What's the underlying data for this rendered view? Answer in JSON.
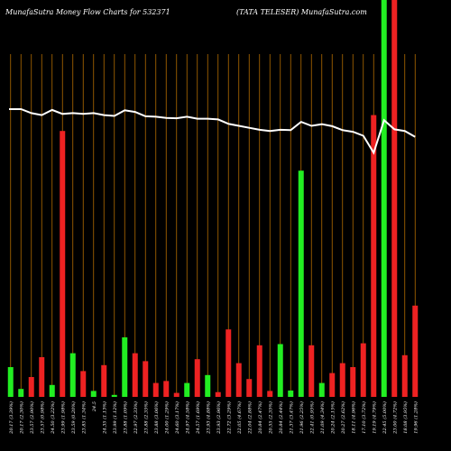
{
  "header": {
    "left": "MunafaSutra  Money Flow  Charts for 532371",
    "right": "(TATA TELESER) MunafaSutra.com"
  },
  "chart_data": {
    "type": "bar",
    "title": "MunafaSutra  Money Flow  Charts for 532371",
    "subtitle": "(TATA TELESER) MunafaSutra.com",
    "colors": {
      "up": "#22ee22",
      "down": "#ee2222",
      "price_line": "#ffffff",
      "grid": "#b36b00",
      "background": "#000000"
    },
    "ylim": [
      0,
      100
    ],
    "categories": [
      "20.17 (3.39%)",
      "20.17 (2.30%)",
      "23.57 (2.90%)",
      "23.57 (0.98%)",
      "24.50 (3.22%)",
      "23.99 (1.98%)",
      "23.59 (0.20%)",
      "23.85 (1.34%)",
      "24.5",
      "24.35 (1.13%)",
      "23.99 (1.12%)",
      "23.88 (1.09%)",
      "22.97 (2.33%)",
      "23.88 (2.35%)",
      "23.88 (3.06%)",
      "24.00 (1.29%)",
      "24.60 (3.17%)",
      "24.97 (4.58%)",
      "24.57 (1.69%)",
      "23.93 (4.88%)",
      "23.93 (2.96%)",
      "22.72 (3.29%)",
      "22.05 (4.67%)",
      "22.04 (2.88%)",
      "20.84 (2.47%)",
      "20.55 (2.35%)",
      "20.84 (2.44%)",
      "21.37 (3.47%)",
      "21.96 (2.25%)",
      "22.41 (0.95%)",
      "21.09 (4.34%)",
      "20.24 (2.15%)",
      "20.27 (2.62%)",
      "18.11 (4.96%)",
      "17.10 (3.72%)",
      "19.19 (4.79%)",
      "22.45 (5.00%)",
      "23.00 (4.72%)",
      "18.08 (3.95%)",
      "19.96 (1.28%)"
    ],
    "series": [
      {
        "type": "bar",
        "values": [
          7.5,
          2,
          5,
          10,
          3,
          67,
          11,
          6.5,
          1.5,
          8,
          0.5,
          15,
          11,
          9,
          3.5,
          4,
          1,
          3.5,
          9.5,
          5.5,
          1.2,
          17,
          8.5,
          4.5,
          13,
          1.5,
          13.3,
          1.6,
          57,
          13,
          3.5,
          6,
          8.5,
          7.5,
          13.5,
          71,
          100,
          100,
          10.5,
          23
        ],
        "direction": [
          "up",
          "up",
          "down",
          "down",
          "up",
          "down",
          "up",
          "down",
          "up",
          "down",
          "up",
          "up",
          "down",
          "down",
          "down",
          "down",
          "down",
          "up",
          "down",
          "up",
          "down",
          "down",
          "down",
          "down",
          "down",
          "down",
          "up",
          "up",
          "up",
          "down",
          "up",
          "down",
          "down",
          "down",
          "down",
          "down",
          "up",
          "down",
          "down",
          "down"
        ]
      },
      {
        "type": "line",
        "values": [
          72.5,
          72.5,
          71.5,
          71,
          72.3,
          71.3,
          71.5,
          71.3,
          71.5,
          71,
          70.8,
          72.2,
          71.8,
          70.7,
          70.6,
          70.3,
          70.2,
          70.6,
          70.1,
          70.1,
          69.9,
          68.8,
          68.3,
          67.8,
          67.3,
          67,
          67.3,
          67.2,
          69.3,
          68.3,
          68.7,
          68.2,
          67.2,
          66.8,
          65.8,
          61.5,
          69.7,
          67.4,
          67,
          65.5
        ]
      }
    ]
  }
}
